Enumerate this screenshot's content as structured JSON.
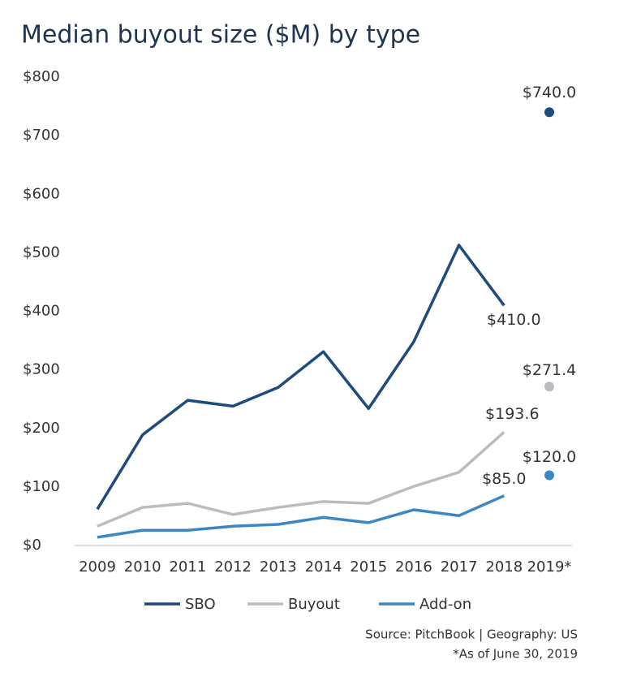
{
  "chart_data": {
    "type": "line",
    "title": "Median buyout size ($M) by type",
    "categories": [
      "2009",
      "2010",
      "2011",
      "2012",
      "2013",
      "2014",
      "2015",
      "2016",
      "2017",
      "2018",
      "2019*"
    ],
    "series": [
      {
        "name": "SBO",
        "color": "#1d4b7c",
        "values": [
          62,
          189,
          248,
          238,
          270,
          331,
          234,
          348,
          513,
          410.0,
          740.0
        ],
        "value_labels": [
          null,
          null,
          null,
          null,
          null,
          null,
          null,
          null,
          null,
          "$410.0",
          "$740.0"
        ]
      },
      {
        "name": "Buyout",
        "color": "#b9bdc1",
        "values": [
          33,
          65,
          72,
          53,
          65,
          75,
          72,
          101,
          125,
          193.6,
          271.4
        ],
        "value_labels": [
          null,
          null,
          null,
          null,
          null,
          null,
          null,
          null,
          null,
          "$193.6",
          "$271.4"
        ]
      },
      {
        "name": "Add-on",
        "color": "#3b86c4",
        "values": [
          14,
          26,
          26,
          33,
          36,
          48,
          39,
          61,
          51,
          85.0,
          120.0
        ],
        "value_labels": [
          null,
          null,
          null,
          null,
          null,
          null,
          null,
          null,
          null,
          "$85.0",
          "$120.0"
        ]
      }
    ],
    "last_as_marker": true,
    "ylim": [
      0,
      800
    ],
    "yticks": [
      {
        "value": 0,
        "label": "$0"
      },
      {
        "value": 100,
        "label": "$100"
      },
      {
        "value": 200,
        "label": "$200"
      },
      {
        "value": 300,
        "label": "$300"
      },
      {
        "value": 400,
        "label": "$400"
      },
      {
        "value": 500,
        "label": "$500"
      },
      {
        "value": 600,
        "label": "$600"
      },
      {
        "value": 700,
        "label": "$700"
      },
      {
        "value": 800,
        "label": "$800"
      }
    ],
    "grid": false,
    "legend": "bottom",
    "source": "Source: PitchBook | Geography: US",
    "footnote": "*As of June 30, 2019"
  }
}
